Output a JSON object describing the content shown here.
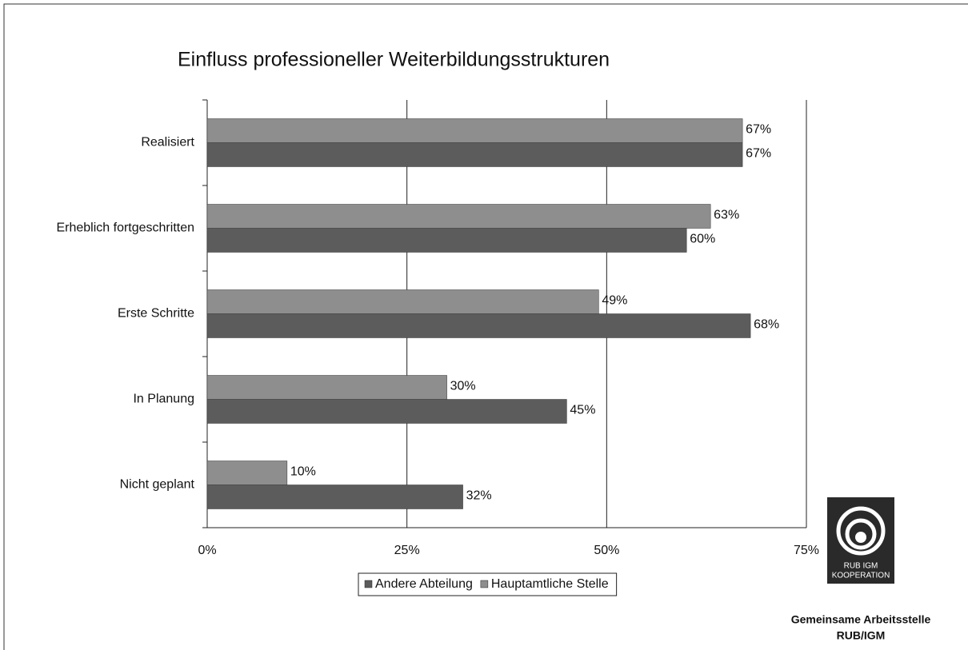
{
  "chart_data": {
    "type": "hbar",
    "title": "Einfluss professioneller Weiterbildungsstrukturen",
    "categories": [
      "Realisiert",
      "Erheblich fortgeschritten",
      "Erste Schritte",
      "In Planung",
      "Nicht geplant"
    ],
    "series": [
      {
        "name": "Andere Abteilung",
        "color": "#5c5c5c",
        "values": [
          67,
          60,
          68,
          45,
          32
        ],
        "value_labels": [
          "67%",
          "60%",
          "68%",
          "45%",
          "32%"
        ]
      },
      {
        "name": "Hauptamtliche Stelle",
        "color": "#8e8e8e",
        "values": [
          67,
          63,
          49,
          30,
          10
        ],
        "value_labels": [
          "67%",
          "63%",
          "49%",
          "30%",
          "10%"
        ]
      }
    ],
    "xlim": [
      0,
      75
    ],
    "xticks": [
      {
        "value": 0,
        "label": "0%"
      },
      {
        "value": 25,
        "label": "25%"
      },
      {
        "value": 50,
        "label": "50%"
      },
      {
        "value": 75,
        "label": "75%"
      }
    ],
    "grid": true,
    "legend": "bottom"
  },
  "logo": {
    "line1": "RUB  IGM",
    "line2": "KOOPERATION",
    "caption1": "Gemeinsame Arbeitsstelle",
    "caption2": "RUB/IGM"
  }
}
